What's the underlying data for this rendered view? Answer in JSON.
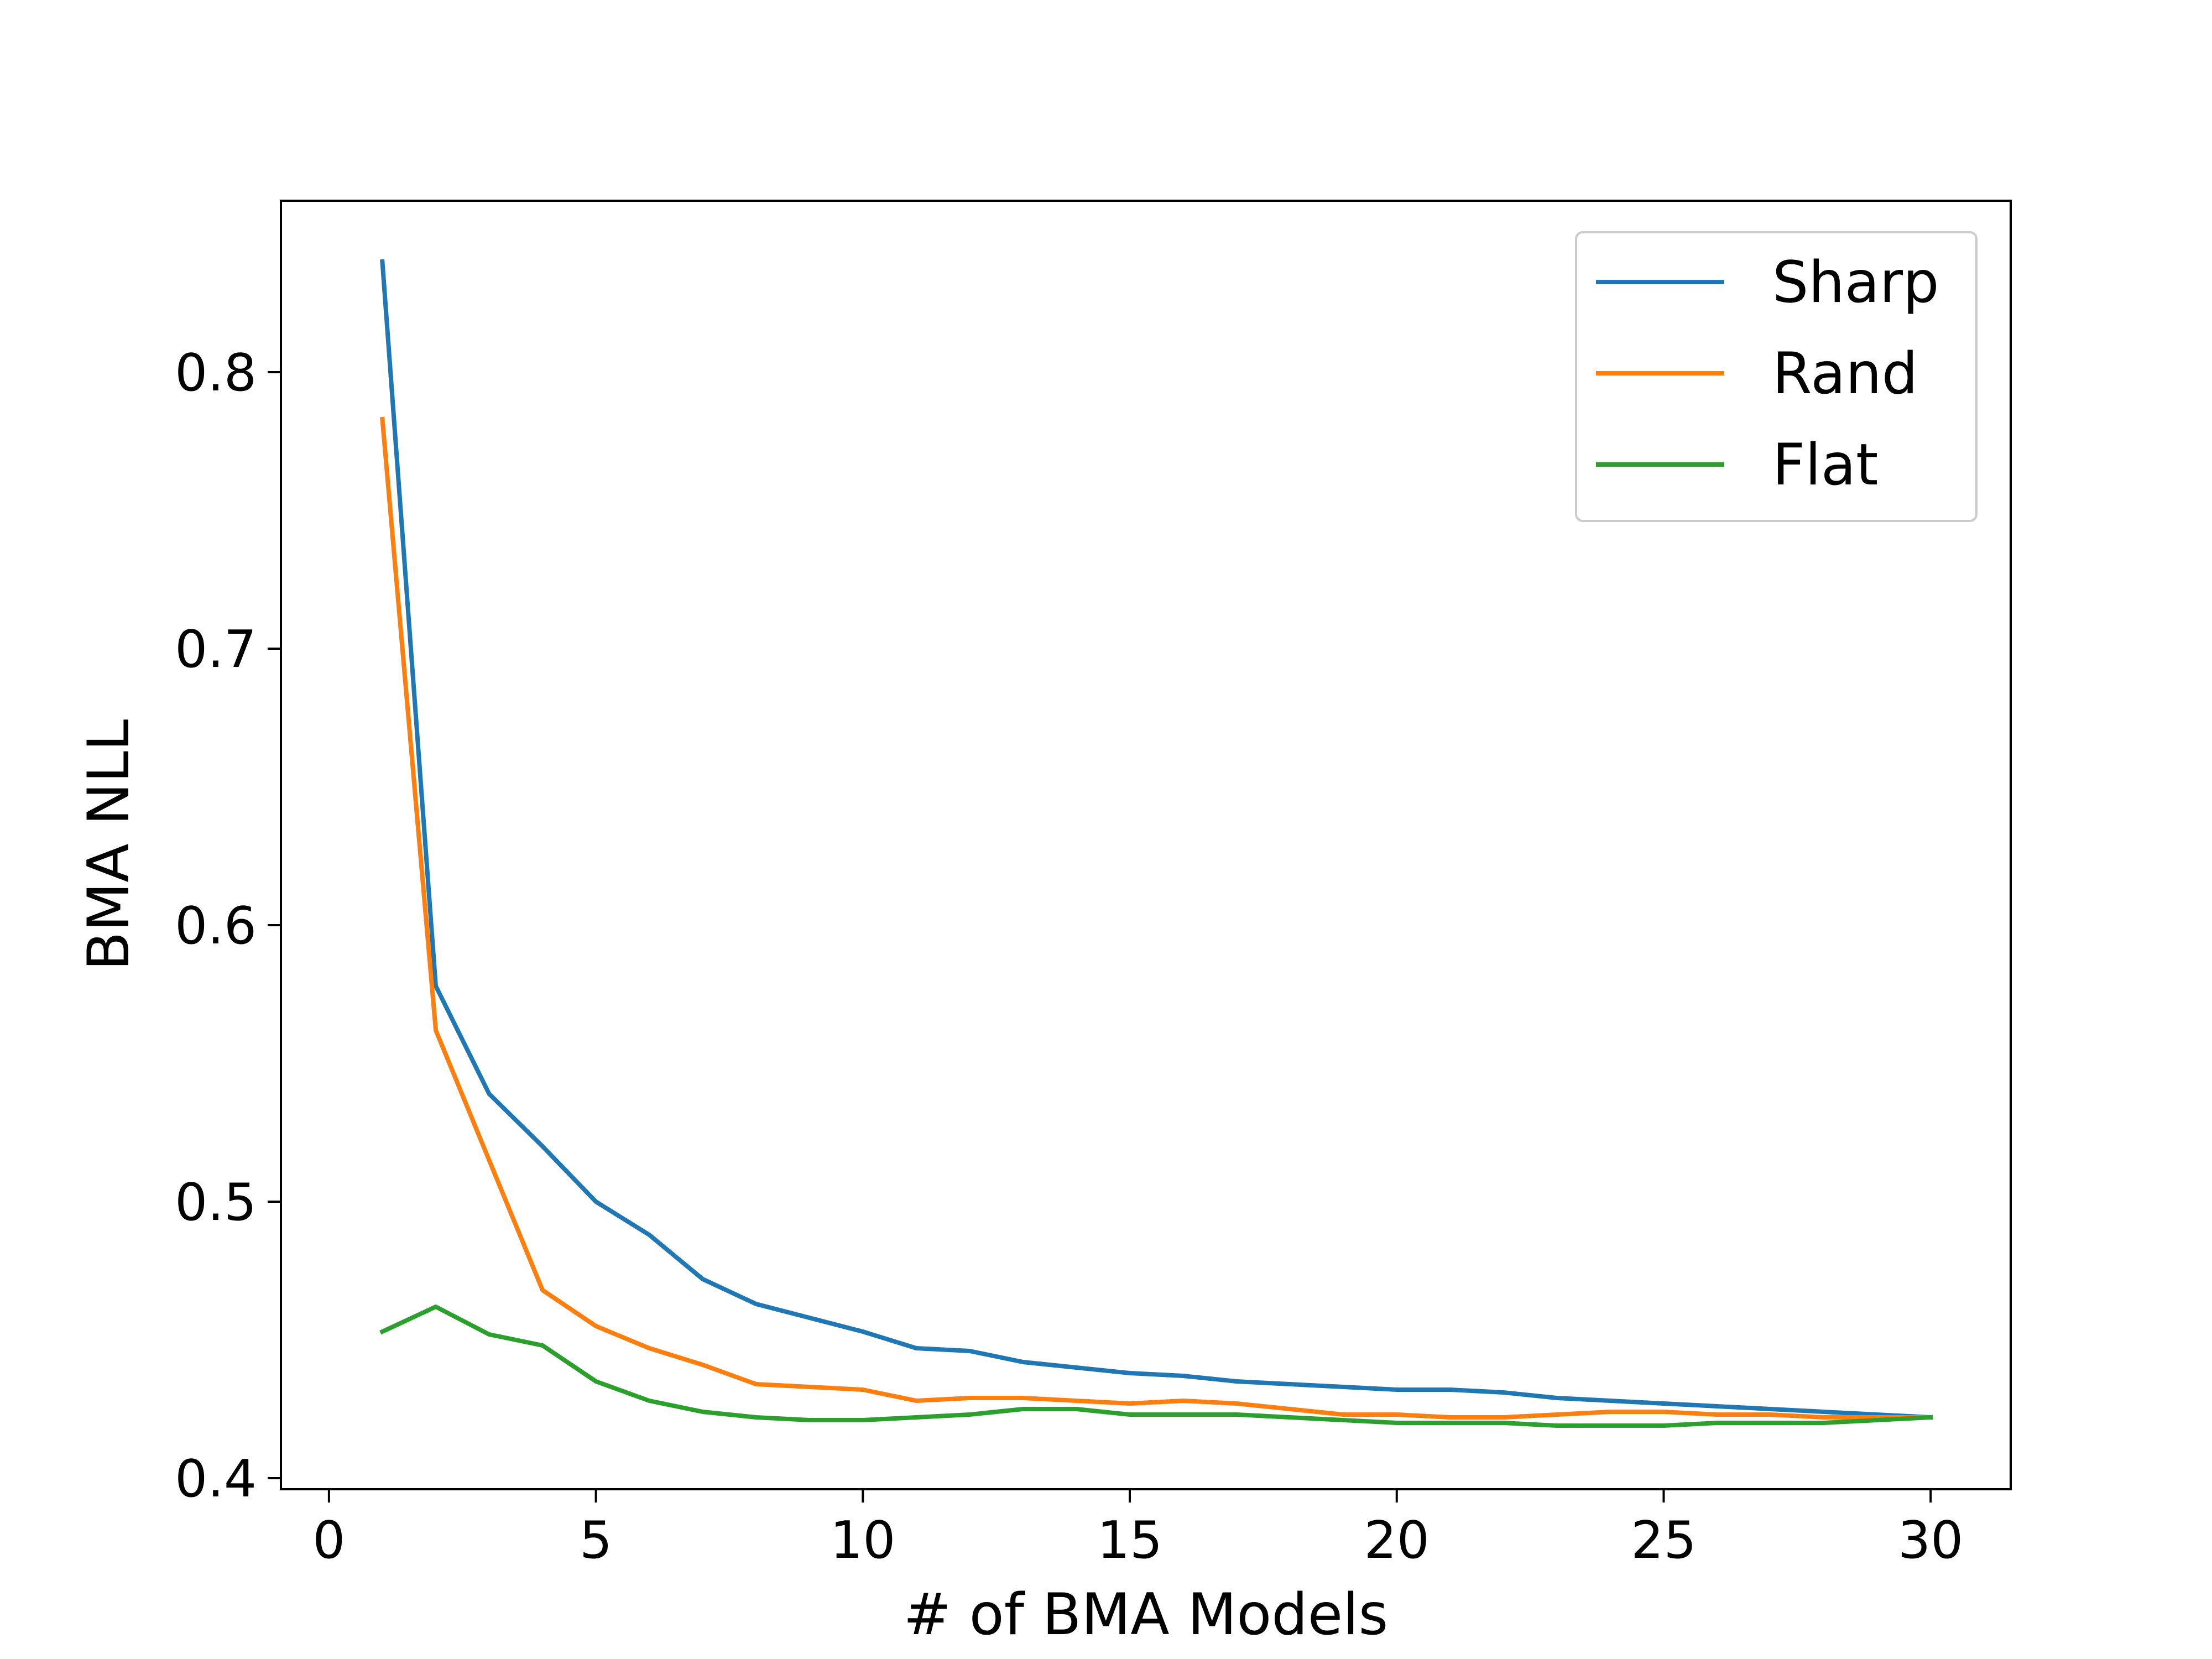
{
  "chart_data": {
    "type": "line",
    "title": "",
    "xlabel": "# of BMA Models",
    "ylabel": "BMA NLL",
    "xlim": [
      -0.9,
      31.5
    ],
    "ylim": [
      0.396,
      0.862
    ],
    "xticks": [
      0,
      5,
      10,
      15,
      20,
      25,
      30
    ],
    "xtick_labels": [
      "0",
      "5",
      "10",
      "15",
      "20",
      "25",
      "30"
    ],
    "yticks": [
      0.4,
      0.5,
      0.6,
      0.7,
      0.8
    ],
    "ytick_labels": [
      "0.4",
      "0.5",
      "0.6",
      "0.7",
      "0.8"
    ],
    "grid": false,
    "legend_position": "top-right",
    "x": [
      1,
      2,
      3,
      4,
      5,
      6,
      7,
      8,
      9,
      10,
      11,
      12,
      13,
      14,
      15,
      16,
      17,
      18,
      19,
      20,
      21,
      22,
      23,
      24,
      25,
      26,
      27,
      28,
      29,
      30
    ],
    "series": [
      {
        "name": "Sharp",
        "color": "#1f77b4",
        "values": [
          0.84,
          0.578,
          0.539,
          0.52,
          0.5,
          0.488,
          0.472,
          0.463,
          0.458,
          0.453,
          0.447,
          0.446,
          0.442,
          0.44,
          0.438,
          0.437,
          0.435,
          0.434,
          0.433,
          0.432,
          0.432,
          0.431,
          0.429,
          0.428,
          0.427,
          0.426,
          0.425,
          0.424,
          0.423,
          0.422
        ]
      },
      {
        "name": "Rand",
        "color": "#ff7f0e",
        "values": [
          0.783,
          0.562,
          0.515,
          0.468,
          0.455,
          0.447,
          0.441,
          0.434,
          0.433,
          0.432,
          0.428,
          0.429,
          0.429,
          0.428,
          0.427,
          0.428,
          0.427,
          0.425,
          0.423,
          0.423,
          0.422,
          0.422,
          0.423,
          0.424,
          0.424,
          0.423,
          0.423,
          0.422,
          0.422,
          0.422
        ]
      },
      {
        "name": "Flat",
        "color": "#2ca02c",
        "values": [
          0.453,
          0.462,
          0.452,
          0.448,
          0.435,
          0.428,
          0.424,
          0.422,
          0.421,
          0.421,
          0.422,
          0.423,
          0.425,
          0.425,
          0.423,
          0.423,
          0.423,
          0.422,
          0.421,
          0.42,
          0.42,
          0.42,
          0.419,
          0.419,
          0.419,
          0.42,
          0.42,
          0.42,
          0.421,
          0.422
        ]
      }
    ]
  }
}
